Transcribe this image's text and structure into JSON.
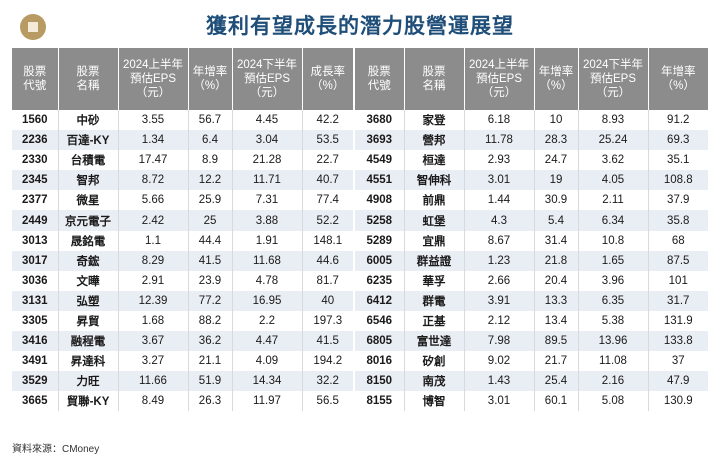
{
  "title": "獲利有望成長的潛力股營運展望",
  "headers": [
    [
      "股票",
      "代號"
    ],
    [
      "股票",
      "名稱"
    ],
    [
      "2024上半年",
      "預估EPS",
      "（元）"
    ],
    [
      "年增率",
      "（%）"
    ],
    [
      "2024下半年",
      "預估EPS",
      "（元）"
    ],
    [
      "成長率",
      "（%）"
    ],
    [
      "股票",
      "代號"
    ],
    [
      "股票",
      "名稱"
    ],
    [
      "2024上半年",
      "預估EPS",
      "（元）"
    ],
    [
      "年增率",
      "（%）"
    ],
    [
      "2024下半年",
      "預估EPS",
      "（元）"
    ],
    [
      "年增率",
      "（%）"
    ]
  ],
  "rows": [
    [
      "1560",
      "中砂",
      "3.55",
      "56.7",
      "4.45",
      "42.2",
      "3680",
      "家登",
      "6.18",
      "10",
      "8.93",
      "91.2"
    ],
    [
      "2236",
      "百達-KY",
      "1.34",
      "6.4",
      "3.04",
      "53.5",
      "3693",
      "營邦",
      "11.78",
      "28.3",
      "25.24",
      "69.3"
    ],
    [
      "2330",
      "台積電",
      "17.47",
      "8.9",
      "21.28",
      "22.7",
      "4549",
      "桓達",
      "2.93",
      "24.7",
      "3.62",
      "35.1"
    ],
    [
      "2345",
      "智邦",
      "8.72",
      "12.2",
      "11.71",
      "40.7",
      "4551",
      "智伸科",
      "3.01",
      "19",
      "4.05",
      "108.8"
    ],
    [
      "2377",
      "微星",
      "5.66",
      "25.9",
      "7.31",
      "77.4",
      "4908",
      "前鼎",
      "1.44",
      "30.9",
      "2.11",
      "37.9"
    ],
    [
      "2449",
      "京元電子",
      "2.42",
      "25",
      "3.88",
      "52.2",
      "5258",
      "虹堡",
      "4.3",
      "5.4",
      "6.34",
      "35.8"
    ],
    [
      "3013",
      "晟銘電",
      "1.1",
      "44.4",
      "1.91",
      "148.1",
      "5289",
      "宜鼎",
      "8.67",
      "31.4",
      "10.8",
      "68"
    ],
    [
      "3017",
      "奇鋐",
      "8.29",
      "41.5",
      "11.68",
      "44.6",
      "6005",
      "群益證",
      "1.23",
      "21.8",
      "1.65",
      "87.5"
    ],
    [
      "3036",
      "文曄",
      "2.91",
      "23.9",
      "4.78",
      "81.7",
      "6235",
      "華孚",
      "2.66",
      "20.4",
      "3.96",
      "101"
    ],
    [
      "3131",
      "弘塑",
      "12.39",
      "77.2",
      "16.95",
      "40",
      "6412",
      "群電",
      "3.91",
      "13.3",
      "6.35",
      "31.7"
    ],
    [
      "3305",
      "昇貿",
      "1.68",
      "88.2",
      "2.2",
      "197.3",
      "6546",
      "正基",
      "2.12",
      "13.4",
      "5.38",
      "131.9"
    ],
    [
      "3416",
      "融程電",
      "3.67",
      "36.2",
      "4.47",
      "41.5",
      "6805",
      "富世達",
      "7.98",
      "89.5",
      "13.96",
      "133.8"
    ],
    [
      "3491",
      "昇達科",
      "3.27",
      "21.1",
      "4.09",
      "194.2",
      "8016",
      "矽創",
      "9.02",
      "21.7",
      "11.08",
      "37"
    ],
    [
      "3529",
      "力旺",
      "11.66",
      "51.9",
      "14.34",
      "32.2",
      "8150",
      "南茂",
      "1.43",
      "25.4",
      "2.16",
      "47.9"
    ],
    [
      "3665",
      "貿聯-KY",
      "8.49",
      "26.3",
      "11.97",
      "56.5",
      "8155",
      "博智",
      "3.01",
      "60.1",
      "5.08",
      "130.9"
    ]
  ],
  "source": "資料來源：CMoney",
  "colors": {
    "title": "#1f4e79",
    "header_bg": "#8c8c8c",
    "stripe": "#e9eef4",
    "icon": "#b89a63"
  }
}
